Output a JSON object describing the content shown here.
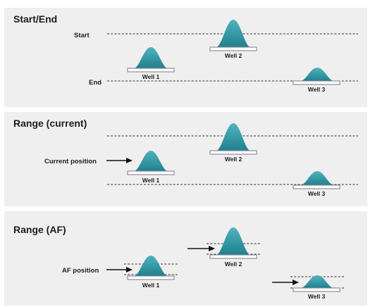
{
  "colors": {
    "peak_top": "#4fb3bd",
    "peak_bottom": "#1f7f8c",
    "panel_bg": "#efeff0"
  },
  "panels": [
    {
      "title": "Start/End",
      "labels": {
        "start": "Start",
        "end": "End"
      },
      "wells": [
        "Well 1",
        "Well 2",
        "Well 3"
      ]
    },
    {
      "title": "Range (current)",
      "labels": {
        "position": "Current position"
      },
      "wells": [
        "Well 1",
        "Well 2",
        "Well 3"
      ]
    },
    {
      "title": "Range (AF)",
      "labels": {
        "position": "AF position"
      },
      "wells": [
        "Well 1",
        "Well 2",
        "Well 3"
      ]
    }
  ]
}
